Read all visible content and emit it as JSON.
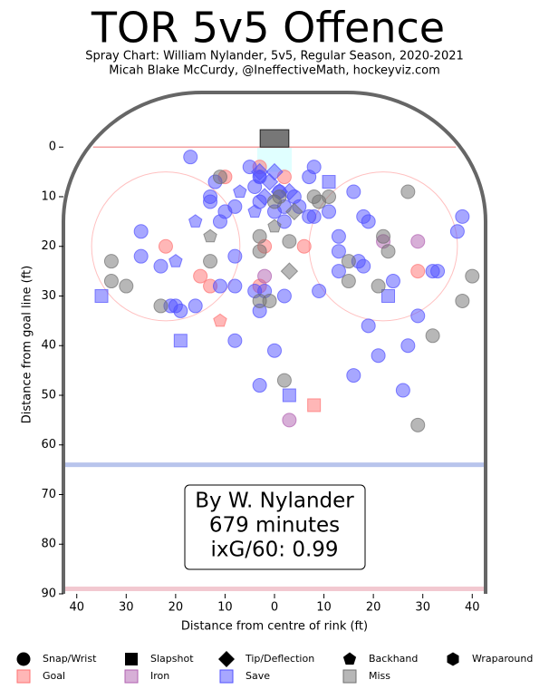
{
  "chart_data": {
    "type": "scatter",
    "title": "TOR 5v5 Offence",
    "subtitle": [
      "Spray Chart: William Nylander, 5v5, Regular Season, 2020-2021",
      "Micah Blake McCurdy, @IneffectiveMath, hockeyviz.com"
    ],
    "x_label": "Distance from centre of rink (ft)",
    "y_label": "Distance from goal line (ft)",
    "annotation": [
      "By W. Nylander",
      "679 minutes",
      "ixG/60: 0.99"
    ],
    "xlim": [
      -42.7,
      42.7
    ],
    "ylim": [
      90,
      -11
    ],
    "xticks": [
      {
        "value": -40,
        "label": "40"
      },
      {
        "value": -30,
        "label": "30"
      },
      {
        "value": -20,
        "label": "20"
      },
      {
        "value": -10,
        "label": "10"
      },
      0,
      10,
      20,
      30,
      40
    ],
    "yticks": [
      0,
      10,
      20,
      30,
      40,
      50,
      60,
      70,
      80,
      90
    ],
    "shot_types": [
      {
        "name": "Snap/Wrist",
        "marker": "circle"
      },
      {
        "name": "Slapshot",
        "marker": "square"
      },
      {
        "name": "Tip/Deflection",
        "marker": "diamond"
      },
      {
        "name": "Backhand",
        "marker": "pentagon"
      },
      {
        "name": "Wraparound",
        "marker": "hexagon"
      }
    ],
    "series": [
      {
        "name": "Goal",
        "color": "#ff7070",
        "x": [
          -10,
          -3,
          -2,
          -3,
          2,
          6,
          -15,
          -13,
          29,
          -22,
          8,
          -11
        ],
        "y": [
          6,
          4,
          20,
          28,
          6,
          20,
          26,
          28,
          25,
          20,
          52,
          35
        ],
        "markers": [
          "circle",
          "circle",
          "circle",
          "circle",
          "circle",
          "circle",
          "circle",
          "circle",
          "circle",
          "circle",
          "square",
          "pentagon"
        ]
      },
      {
        "name": "Iron",
        "color": "#b060b0",
        "x": [
          -2,
          3,
          29,
          22
        ],
        "y": [
          26,
          55,
          19,
          19
        ],
        "markers": [
          "circle",
          "circle",
          "circle",
          "circle"
        ]
      },
      {
        "name": "Save",
        "color": "#5050ff",
        "x": [
          -17,
          -27,
          -27,
          -23,
          -21,
          -20,
          -19,
          -16,
          -13,
          -13,
          -12,
          -11,
          -10,
          -8,
          -8,
          -8,
          -8,
          -11,
          -5,
          -4,
          -4,
          -3,
          -3,
          -2,
          -3,
          -3,
          0,
          0,
          1,
          2,
          2,
          2,
          4,
          5,
          7,
          8,
          8,
          7,
          9,
          11,
          13,
          13,
          13,
          16,
          17,
          18,
          18,
          19,
          19,
          21,
          24,
          26,
          27,
          29,
          16,
          32,
          33,
          37,
          38,
          -35,
          -19,
          3,
          11,
          23,
          -16,
          -20,
          -4,
          -7,
          -3,
          -3,
          0,
          -1,
          1,
          3,
          -2
        ],
        "y": [
          2,
          17,
          22,
          24,
          32,
          32,
          33,
          32,
          10,
          11,
          7,
          15,
          13,
          12,
          22,
          28,
          39,
          28,
          4,
          8,
          29,
          6,
          11,
          29,
          33,
          48,
          41,
          13,
          9,
          12,
          15,
          30,
          10,
          12,
          6,
          4,
          14,
          14,
          29,
          13,
          18,
          21,
          25,
          9,
          23,
          24,
          14,
          15,
          36,
          42,
          27,
          49,
          40,
          34,
          46,
          25,
          25,
          17,
          14,
          30,
          39,
          50,
          7,
          30,
          15,
          23,
          13,
          9,
          6,
          5,
          5,
          7,
          9,
          9,
          10
        ],
        "markers": [
          "circle",
          "circle",
          "circle",
          "circle",
          "circle",
          "circle",
          "circle",
          "circle",
          "circle",
          "circle",
          "circle",
          "circle",
          "circle",
          "circle",
          "circle",
          "circle",
          "circle",
          "circle",
          "circle",
          "circle",
          "circle",
          "circle",
          "circle",
          "circle",
          "circle",
          "circle",
          "circle",
          "circle",
          "circle",
          "circle",
          "circle",
          "circle",
          "circle",
          "circle",
          "circle",
          "circle",
          "circle",
          "circle",
          "circle",
          "circle",
          "circle",
          "circle",
          "circle",
          "circle",
          "circle",
          "circle",
          "circle",
          "circle",
          "circle",
          "circle",
          "circle",
          "circle",
          "circle",
          "circle",
          "circle",
          "circle",
          "circle",
          "circle",
          "circle",
          "square",
          "square",
          "square",
          "square",
          "square",
          "pentagon",
          "pentagon",
          "pentagon",
          "pentagon",
          "pentagon",
          "diamond",
          "diamond",
          "diamond",
          "diamond",
          "diamond",
          "diamond"
        ]
      },
      {
        "name": "Miss",
        "color": "#707070",
        "x": [
          -33,
          -33,
          -30,
          -23,
          -13,
          -11,
          -3,
          -3,
          -1,
          3,
          2,
          -3,
          8,
          11,
          9,
          15,
          15,
          21,
          22,
          23,
          27,
          32,
          29,
          38,
          40,
          0,
          1,
          -13,
          0,
          3,
          4
        ],
        "y": [
          23,
          27,
          28,
          32,
          23,
          6,
          21,
          31,
          31,
          19,
          47,
          18,
          10,
          10,
          11,
          27,
          23,
          28,
          18,
          21,
          9,
          38,
          56,
          31,
          26,
          11,
          10,
          18,
          16,
          25,
          13
        ],
        "markers": [
          "circle",
          "circle",
          "circle",
          "circle",
          "circle",
          "circle",
          "circle",
          "circle",
          "circle",
          "circle",
          "circle",
          "circle",
          "circle",
          "circle",
          "circle",
          "circle",
          "circle",
          "circle",
          "circle",
          "circle",
          "circle",
          "circle",
          "circle",
          "circle",
          "circle",
          "circle",
          "circle",
          "pentagon",
          "pentagon",
          "diamond",
          "diamond"
        ]
      }
    ]
  }
}
